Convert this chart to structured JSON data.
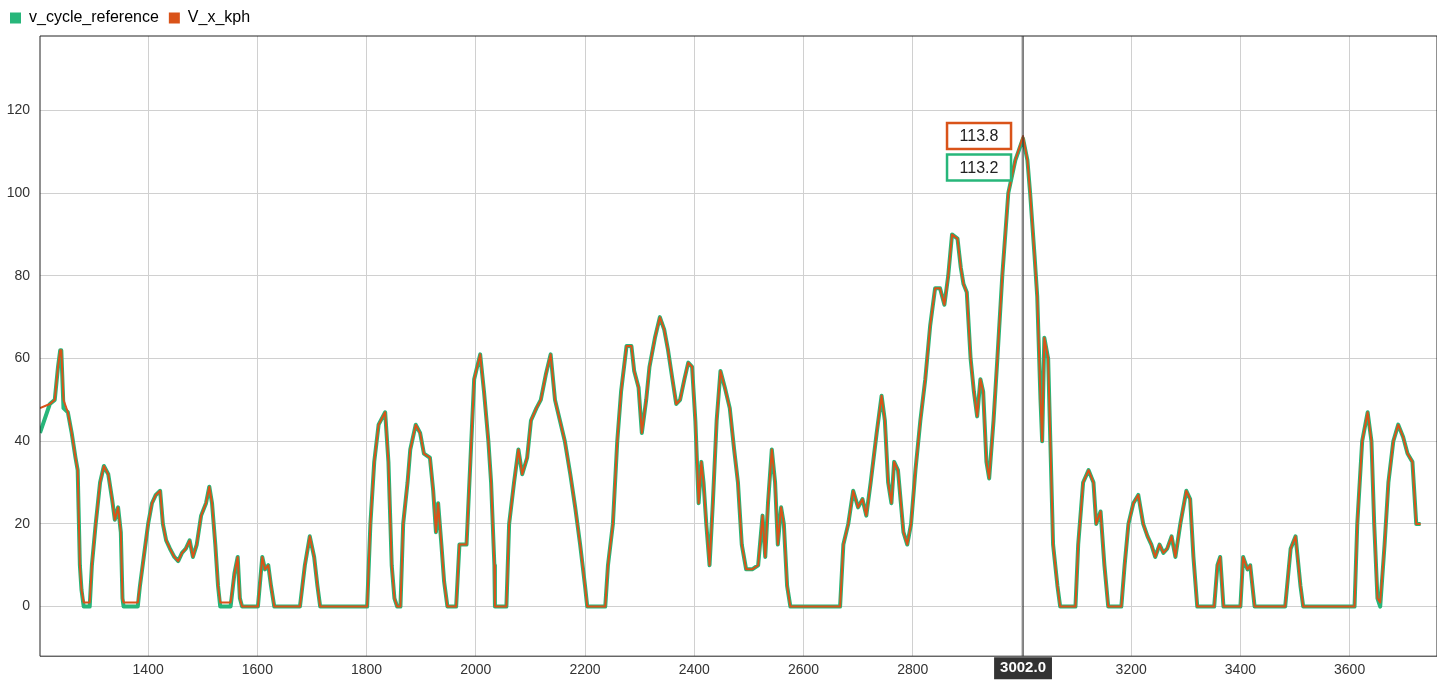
{
  "chart_data": {
    "type": "line",
    "legend": "top left",
    "grid": true,
    "marker": "none",
    "line_style": "solid",
    "xlim": [
      1202,
      3760
    ],
    "ylim": [
      -12,
      138
    ],
    "xticks": [
      1400,
      1600,
      1800,
      2000,
      2200,
      2400,
      2600,
      2800,
      {
        "value": 3000,
        "label": null
      },
      3200,
      3400,
      3600
    ],
    "yticks": [
      0,
      20,
      40,
      60,
      80,
      100,
      120
    ],
    "x": [
      1202,
      1220,
      1229,
      1235,
      1239,
      1241,
      1245,
      1253,
      1260,
      1267,
      1271,
      1275,
      1278,
      1282,
      1293,
      1297,
      1304,
      1312,
      1319,
      1327,
      1334,
      1339,
      1345,
      1350,
      1353,
      1355,
      1381,
      1385,
      1392,
      1400,
      1407,
      1414,
      1422,
      1427,
      1433,
      1440,
      1448,
      1455,
      1462,
      1469,
      1476,
      1482,
      1489,
      1497,
      1506,
      1512,
      1517,
      1523,
      1528,
      1532,
      1551,
      1558,
      1564,
      1568,
      1572,
      1601,
      1609,
      1614,
      1620,
      1625,
      1631,
      1678,
      1687,
      1696,
      1704,
      1710,
      1715,
      1801,
      1807,
      1814,
      1822,
      1834,
      1840,
      1846,
      1851,
      1856,
      1862,
      1867,
      1875,
      1880,
      1890,
      1898,
      1905,
      1916,
      1922,
      1927,
      1931,
      1937,
      1942,
      1948,
      1964,
      1970,
      1983,
      1990,
      1997,
      2008,
      2015,
      2023,
      2028,
      2034,
      2035,
      2056,
      2061,
      2070,
      2078,
      2085,
      2094,
      2101,
      2111,
      2119,
      2128,
      2137,
      2145,
      2154,
      2163,
      2173,
      2182,
      2191,
      2200,
      2204,
      2237,
      2242,
      2251,
      2259,
      2266,
      2276,
      2285,
      2290,
      2298,
      2304,
      2312,
      2318,
      2328,
      2337,
      2345,
      2352,
      2360,
      2367,
      2374,
      2382,
      2389,
      2396,
      2402,
      2408,
      2413,
      2417,
      2422,
      2428,
      2434,
      2441,
      2448,
      2456,
      2465,
      2473,
      2480,
      2487,
      2495,
      2506,
      2517,
      2525,
      2530,
      2535,
      2542,
      2548,
      2553,
      2559,
      2564,
      2570,
      2576,
      2667,
      2673,
      2682,
      2691,
      2700,
      2708,
      2715,
      2723,
      2734,
      2743,
      2749,
      2755,
      2761,
      2766,
      2773,
      2783,
      2790,
      2797,
      2805,
      2814,
      2823,
      2832,
      2841,
      2850,
      2858,
      2865,
      2872,
      2882,
      2888,
      2893,
      2899,
      2906,
      2912,
      2918,
      2924,
      2929,
      2935,
      2940,
      2948,
      2955,
      2964,
      2975,
      2988,
      3002,
      3010,
      3015,
      3023,
      3028,
      3034,
      3037,
      3041,
      3048,
      3052,
      3057,
      3065,
      3070,
      3098,
      3103,
      3112,
      3122,
      3131,
      3136,
      3144,
      3151,
      3158,
      3182,
      3188,
      3195,
      3204,
      3213,
      3222,
      3230,
      3237,
      3244,
      3252,
      3259,
      3266,
      3274,
      3281,
      3290,
      3301,
      3308,
      3314,
      3321,
      3352,
      3358,
      3363,
      3369,
      3400,
      3405,
      3413,
      3418,
      3426,
      3482,
      3492,
      3501,
      3510,
      3515,
      3609,
      3614,
      3623,
      3633,
      3640,
      3645,
      3651,
      3656,
      3664,
      3671,
      3680,
      3689,
      3698,
      3706,
      3715,
      3722,
      3730
    ],
    "series": [
      {
        "name": "v_cycle_reference",
        "color": "#27b67a",
        "values": [
          42,
          49,
          50,
          58,
          62,
          62,
          48,
          47,
          42,
          36,
          33,
          10,
          4,
          0,
          0,
          10,
          20,
          30,
          34,
          32,
          26,
          21,
          24,
          18,
          2,
          0,
          0,
          5,
          12,
          20,
          25,
          27,
          28,
          20,
          16,
          14,
          12,
          11,
          13,
          14,
          16,
          12,
          15,
          22,
          25,
          29,
          25,
          15,
          5,
          0,
          0,
          8,
          12,
          2,
          0,
          0,
          12,
          9,
          10,
          5,
          0,
          0,
          10,
          17,
          12,
          5,
          0,
          0,
          20,
          35,
          44,
          47,
          35,
          10,
          2,
          0,
          0,
          20,
          30,
          38,
          44,
          42,
          37,
          36,
          28,
          18,
          25,
          15,
          6,
          0,
          0,
          15,
          15,
          35,
          55,
          61,
          52,
          40,
          30,
          10,
          0,
          0,
          20,
          30,
          38,
          32,
          36,
          45,
          48,
          50,
          56,
          61,
          50,
          45,
          40,
          32,
          24,
          15,
          5,
          0,
          0,
          10,
          20,
          40,
          52,
          63,
          63,
          57,
          53,
          42,
          50,
          58,
          65,
          70,
          67,
          62,
          55,
          49,
          50,
          55,
          59,
          58,
          45,
          25,
          35,
          30,
          20,
          10,
          25,
          45,
          57,
          53,
          48,
          38,
          30,
          15,
          9,
          9,
          10,
          22,
          12,
          25,
          38,
          30,
          15,
          24,
          20,
          5,
          0,
          0,
          15,
          20,
          28,
          24,
          26,
          22,
          30,
          42,
          51,
          45,
          30,
          25,
          35,
          33,
          18,
          15,
          20,
          33,
          45,
          55,
          68,
          77,
          77,
          73,
          80,
          90,
          89,
          82,
          78,
          76,
          60,
          52,
          46,
          55,
          52,
          35,
          31,
          45,
          60,
          80,
          100,
          108,
          113.2,
          108,
          100,
          85,
          75,
          50,
          40,
          65,
          60,
          40,
          15,
          5,
          0,
          0,
          15,
          30,
          33,
          30,
          20,
          23,
          10,
          0,
          0,
          10,
          20,
          25,
          27,
          20,
          17,
          15,
          12,
          15,
          13,
          14,
          17,
          12,
          20,
          28,
          26,
          12,
          0,
          0,
          10,
          12,
          0,
          0,
          12,
          9,
          10,
          0,
          0,
          14,
          17,
          5,
          0,
          0,
          20,
          40,
          47,
          40,
          20,
          2,
          0,
          15,
          30,
          40,
          44,
          41,
          37,
          35,
          20,
          20
        ]
      },
      {
        "name": "V_x_kph",
        "color": "#d95319",
        "values": [
          48,
          49,
          50,
          58,
          62,
          62,
          50,
          47,
          42,
          36,
          33,
          10,
          4,
          1,
          1,
          10,
          20,
          30,
          34,
          32,
          26,
          21,
          24,
          18,
          2,
          1,
          1,
          5,
          12,
          20,
          25,
          27,
          28,
          20,
          16,
          14,
          12,
          11,
          13,
          14,
          16,
          12,
          15,
          22,
          25,
          29,
          25,
          15,
          5,
          1,
          1,
          8,
          12,
          2,
          0,
          0,
          12,
          9,
          10,
          5,
          0,
          0,
          10,
          17,
          12,
          5,
          0,
          0,
          20,
          35,
          44,
          47,
          35,
          10,
          2,
          0,
          0,
          20,
          30,
          38,
          44,
          42,
          37,
          36,
          28,
          18,
          25,
          15,
          6,
          0,
          0,
          15,
          15,
          35,
          55,
          61,
          52,
          40,
          30,
          10,
          0,
          0,
          20,
          30,
          38,
          32,
          36,
          45,
          48,
          50,
          56,
          61,
          50,
          45,
          40,
          32,
          24,
          15,
          5,
          0,
          0,
          10,
          20,
          40,
          52,
          63,
          63,
          57,
          53,
          42,
          50,
          58,
          65,
          70,
          67,
          62,
          55,
          49,
          50,
          55,
          59,
          58,
          45,
          25,
          35,
          30,
          20,
          10,
          25,
          45,
          57,
          53,
          48,
          38,
          30,
          15,
          9,
          9,
          10,
          22,
          12,
          25,
          38,
          30,
          15,
          24,
          20,
          5,
          0,
          0,
          15,
          20,
          28,
          24,
          26,
          22,
          30,
          42,
          51,
          45,
          30,
          25,
          35,
          33,
          18,
          15,
          20,
          33,
          45,
          55,
          68,
          77,
          77,
          73,
          80,
          90,
          89,
          82,
          78,
          76,
          60,
          52,
          46,
          55,
          52,
          35,
          31,
          45,
          60,
          80,
          100,
          108,
          113.8,
          108,
          100,
          85,
          75,
          50,
          40,
          65,
          60,
          40,
          15,
          5,
          0,
          0,
          15,
          30,
          33,
          30,
          20,
          23,
          10,
          0,
          0,
          10,
          20,
          25,
          27,
          20,
          17,
          15,
          12,
          15,
          13,
          14,
          17,
          12,
          20,
          28,
          26,
          12,
          0,
          0,
          10,
          12,
          0,
          0,
          12,
          9,
          10,
          0,
          0,
          14,
          17,
          5,
          0,
          0,
          20,
          40,
          47,
          40,
          20,
          2,
          1,
          15,
          30,
          40,
          44,
          41,
          37,
          35,
          20,
          20
        ]
      }
    ],
    "ref_lines": [
      {
        "axis": "x",
        "value": 3002,
        "label": "3002.0",
        "color": "#333333"
      }
    ],
    "annotations": [
      {
        "text": "113.8",
        "x": 3002,
        "y": 113.8
      },
      {
        "text": "113.2",
        "x": 3002,
        "y": 113.2
      }
    ]
  }
}
